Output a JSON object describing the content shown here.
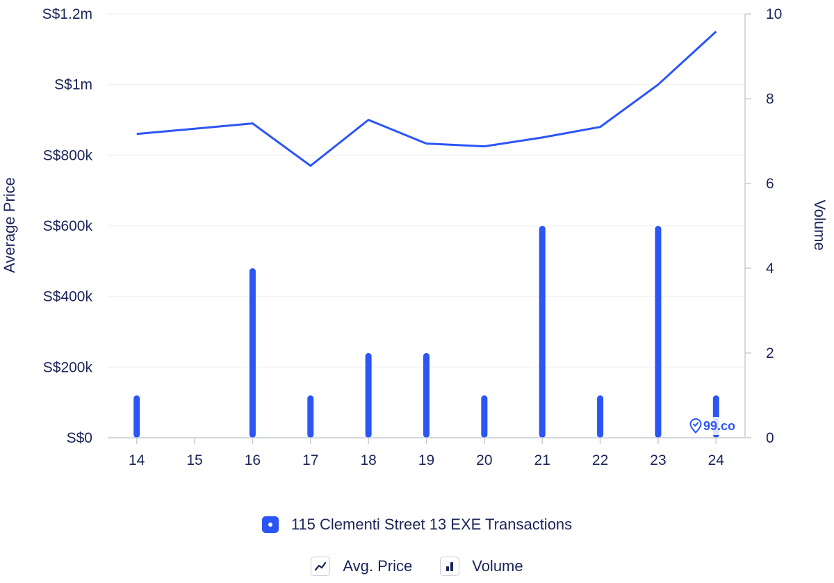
{
  "chart_data": {
    "type": "bar+line",
    "categories": [
      "14",
      "15",
      "16",
      "17",
      "18",
      "19",
      "20",
      "21",
      "22",
      "23",
      "24"
    ],
    "series": [
      {
        "name": "115 Clementi Street 13 EXE Transactions",
        "kind": "line",
        "axis": "left",
        "values": [
          860000,
          null,
          890000,
          770000,
          900000,
          833000,
          825000,
          850000,
          880000,
          1000000,
          1150000
        ]
      },
      {
        "name": "115 Clementi Street 13 EXE Transactions",
        "kind": "bar",
        "axis": "right",
        "values": [
          1,
          0,
          4,
          1,
          2,
          2,
          1,
          5,
          1,
          5,
          1
        ]
      }
    ],
    "y_left": {
      "label": "Average Price",
      "range": [
        0,
        1200000
      ],
      "ticks": [
        0,
        200000,
        400000,
        600000,
        800000,
        1000000,
        1200000
      ],
      "tick_labels": [
        "S$0",
        "S$200k",
        "S$400k",
        "S$600k",
        "S$800k",
        "S$1m",
        "S$1.2m"
      ]
    },
    "y_right": {
      "label": "Volume",
      "range": [
        0,
        10
      ],
      "ticks": [
        0,
        2,
        4,
        6,
        8,
        10
      ],
      "tick_labels": [
        "0",
        "2",
        "4",
        "6",
        "8",
        "10"
      ]
    },
    "grid": true,
    "legend_position": "bottom",
    "colors": {
      "series": "#2b55f5",
      "text": "#1b2559",
      "grid": "#f0f1f4",
      "axis": "#c8ccd6"
    }
  },
  "legend": {
    "series_label": "115 Clementi Street 13 EXE Transactions",
    "avg_price_label": "Avg. Price",
    "volume_label": "Volume"
  },
  "watermark": {
    "text": "99.co"
  }
}
